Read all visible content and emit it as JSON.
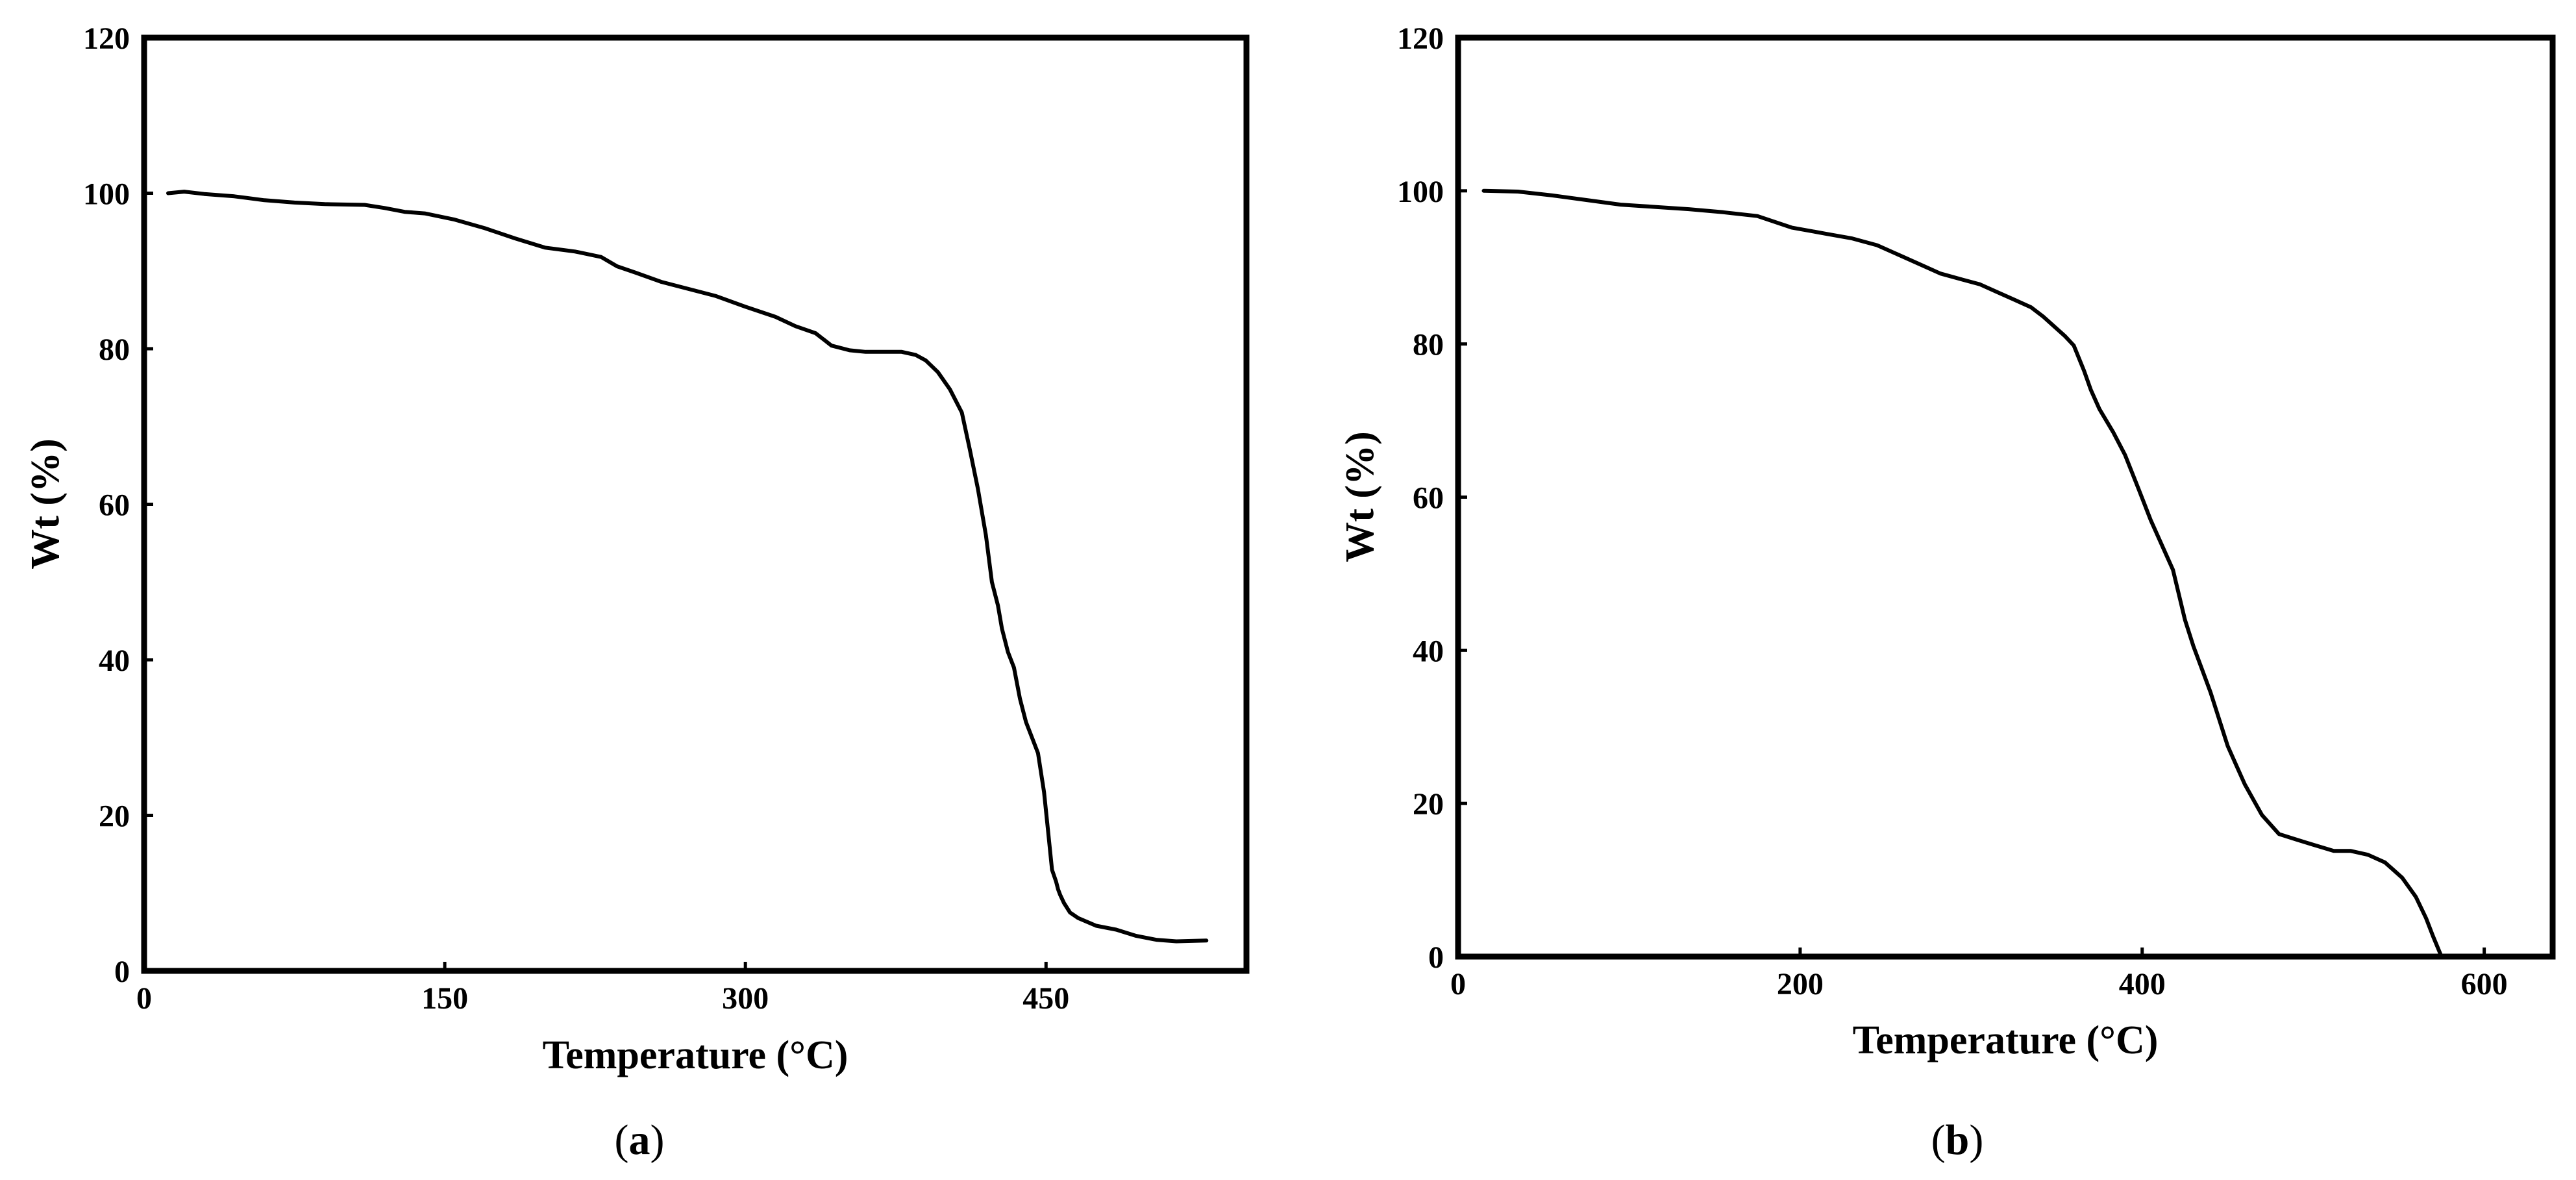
{
  "colors": {
    "line": "#000000",
    "background": "#ffffff"
  },
  "chart_data": [
    {
      "type": "line",
      "panel_label": "a",
      "title": "",
      "xlabel": "Temperature (°C)",
      "ylabel": "Wt (%)",
      "xlim": [
        0,
        550
      ],
      "ylim": [
        0,
        120
      ],
      "xticks": [
        0,
        150,
        300,
        450
      ],
      "yticks": [
        0,
        20,
        40,
        60,
        80,
        100,
        120
      ],
      "grid": false,
      "legend": "none",
      "series": [
        {
          "x": [
            12,
            20,
            30,
            45,
            60,
            75,
            90,
            110,
            120,
            130,
            140,
            155,
            170,
            185,
            200,
            215,
            228,
            236,
            245,
            258,
            270,
            285,
            300,
            315,
            325,
            335,
            343,
            352,
            360,
            370,
            378,
            385,
            390,
            396,
            402,
            408,
            412,
            416,
            420,
            423,
            426,
            428,
            431,
            434,
            437,
            440,
            443,
            446,
            449,
            451,
            453,
            455,
            456,
            457,
            459,
            462,
            466,
            475,
            485,
            495,
            505,
            515,
            530
          ],
          "y": [
            100,
            100.2,
            99.9,
            99.6,
            99.1,
            98.8,
            98.6,
            98.5,
            98.1,
            97.6,
            97.4,
            96.6,
            95.5,
            94.2,
            93,
            92.5,
            91.8,
            90.6,
            89.8,
            88.6,
            87.8,
            86.8,
            85.4,
            84.1,
            82.9,
            82,
            80.4,
            79.8,
            79.6,
            79.6,
            79.6,
            79.2,
            78.5,
            77,
            74.8,
            71.8,
            67,
            62,
            56,
            50,
            47,
            44,
            41,
            39,
            35,
            32,
            30,
            28,
            23,
            18,
            13,
            11.5,
            10.5,
            9.8,
            8.7,
            7.5,
            6.8,
            5.8,
            5.3,
            4.5,
            4,
            3.8,
            3.9
          ]
        }
      ]
    },
    {
      "type": "line",
      "panel_label": "b",
      "title": "",
      "xlabel": "Temperature (°C)",
      "ylabel": "Wt (%)",
      "xlim": [
        0,
        640
      ],
      "ylim": [
        0,
        120
      ],
      "xticks": [
        0,
        200,
        400,
        600
      ],
      "yticks": [
        0,
        20,
        40,
        60,
        80,
        100,
        120
      ],
      "grid": false,
      "legend": "none",
      "series": [
        {
          "x": [
            15,
            35,
            55,
            75,
            95,
            115,
            135,
            155,
            175,
            195,
            215,
            230,
            245,
            258,
            270,
            282,
            295,
            305,
            315,
            325,
            335,
            342,
            348,
            355,
            360,
            366,
            370,
            375,
            383,
            390,
            398,
            405,
            410,
            418,
            425,
            430,
            435,
            440,
            445,
            450,
            455,
            460,
            465,
            470,
            480,
            490,
            500,
            512,
            522,
            532,
            542,
            552,
            560,
            566,
            570,
            575
          ],
          "y": [
            100,
            99.9,
            99.4,
            98.8,
            98.2,
            97.9,
            97.6,
            97.2,
            96.7,
            95.2,
            94.4,
            93.8,
            92.9,
            91.6,
            90.4,
            89.2,
            88.4,
            87.8,
            86.8,
            85.8,
            84.8,
            83.6,
            82.4,
            81,
            79.8,
            76.5,
            74,
            71.5,
            68.5,
            65.5,
            61,
            57,
            54.5,
            50.5,
            44,
            40.5,
            37.5,
            34.5,
            31,
            27.5,
            25,
            22.5,
            20.5,
            18.5,
            16,
            15.3,
            14.6,
            13.8,
            13.8,
            13.3,
            12.3,
            10.3,
            7.8,
            5,
            2.7,
            0
          ]
        }
      ]
    }
  ]
}
